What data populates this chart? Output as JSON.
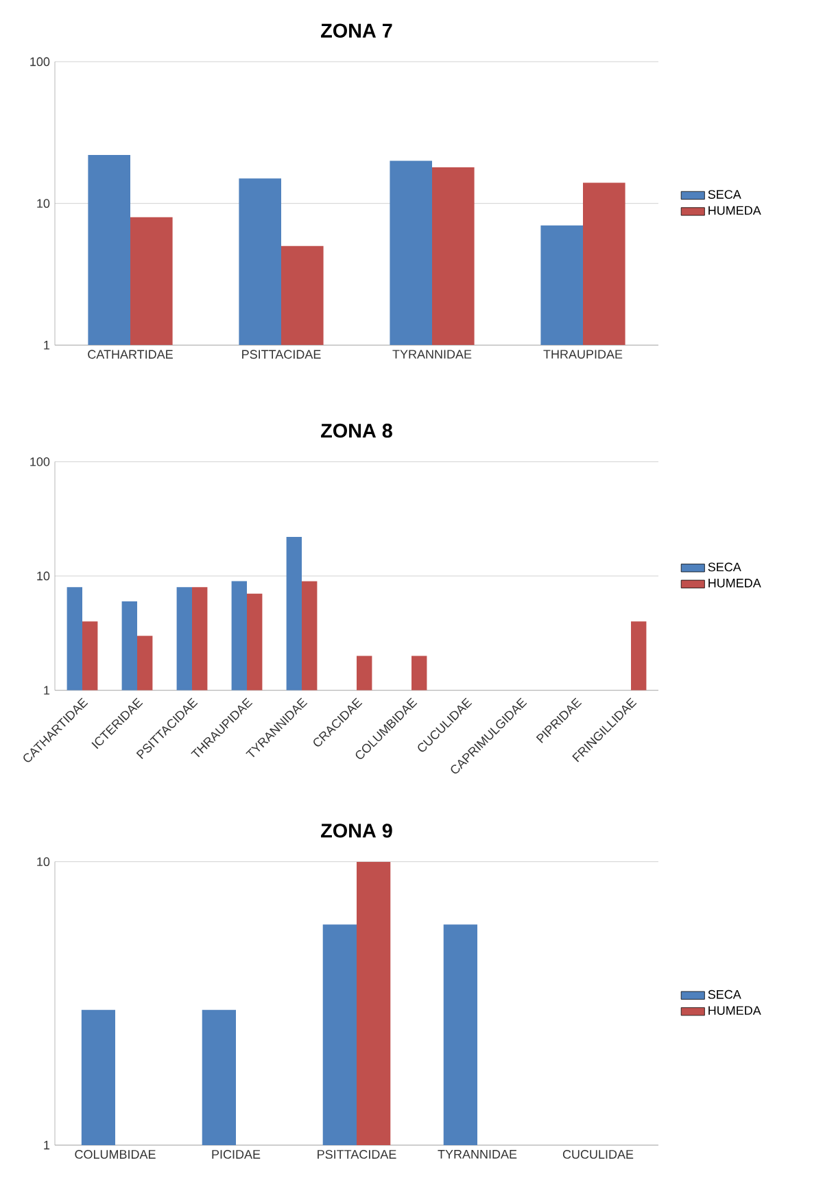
{
  "chart_data": [
    {
      "type": "bar",
      "title": "ZONA 7",
      "categories": [
        "CATHARTIDAE",
        "PSITTACIDAE",
        "TYRANNIDAE",
        "THRAUPIDAE"
      ],
      "series": [
        {
          "name": "SECA",
          "color": "#4f81bd",
          "values": [
            22,
            15,
            20,
            7
          ]
        },
        {
          "name": "HUMEDA",
          "color": "#c0504d",
          "values": [
            8,
            5,
            18,
            14
          ]
        }
      ],
      "log": true,
      "ylim": [
        1,
        100
      ],
      "yticks": [
        1,
        10,
        100
      ],
      "grid": "y",
      "legend": "right"
    },
    {
      "type": "bar",
      "title": "ZONA 8",
      "categories": [
        "CATHARTIDAE",
        "ICTERIDAE",
        "PSITTACIDAE",
        "THRAUPIDAE",
        "TYRANNIDAE",
        "CRACIDAE",
        "COLUMBIDAE",
        "CUCULIDAE",
        "CAPRIMULGIDAE",
        "PIPRIDAE",
        "FRINGILLIDAE"
      ],
      "series": [
        {
          "name": "SECA",
          "color": "#4f81bd",
          "values": [
            8,
            6,
            8,
            9,
            22,
            null,
            null,
            null,
            null,
            null,
            null
          ]
        },
        {
          "name": "HUMEDA",
          "color": "#c0504d",
          "values": [
            4,
            3,
            8,
            7,
            9,
            2,
            2,
            null,
            null,
            null,
            4
          ]
        }
      ],
      "log": true,
      "ylim": [
        1,
        100
      ],
      "yticks": [
        1,
        10,
        100
      ],
      "grid": "y",
      "legend": "right"
    },
    {
      "type": "bar",
      "title": "ZONA 9",
      "categories": [
        "COLUMBIDAE",
        "PICIDAE",
        "PSITTACIDAE",
        "TYRANNIDAE",
        "CUCULIDAE"
      ],
      "series": [
        {
          "name": "SECA",
          "color": "#4f81bd",
          "values": [
            3,
            3,
            6,
            6,
            null
          ]
        },
        {
          "name": "HUMEDA",
          "color": "#c0504d",
          "values": [
            null,
            null,
            10,
            null,
            null
          ]
        }
      ],
      "log": true,
      "ylim": [
        1,
        10
      ],
      "yticks": [
        1,
        10
      ],
      "grid": "y",
      "legend": "right"
    }
  ]
}
